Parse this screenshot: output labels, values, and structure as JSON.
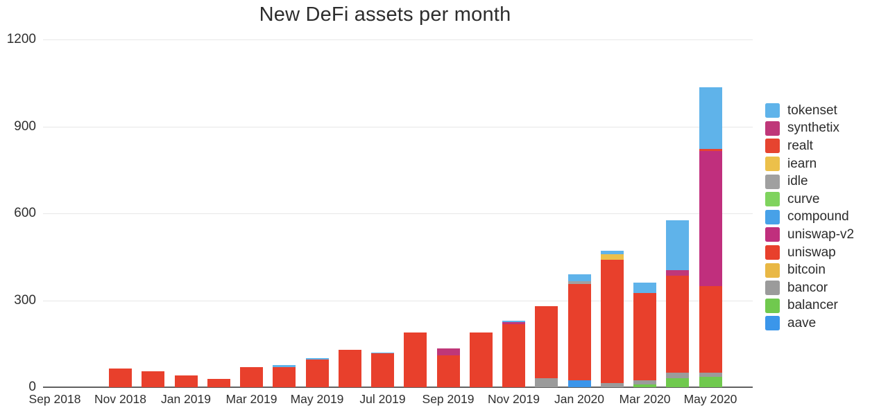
{
  "chart_data": {
    "type": "bar",
    "stacked": true,
    "title": "New DeFi assets per month",
    "categories": [
      "Sep 2018",
      "Oct 2018",
      "Nov 2018",
      "Dec 2018",
      "Jan 2019",
      "Feb 2019",
      "Mar 2019",
      "Apr 2019",
      "May 2019",
      "Jun 2019",
      "Jul 2019",
      "Aug 2019",
      "Sep 2019",
      "Oct 2019",
      "Nov 2019",
      "Dec 2019",
      "Jan 2020",
      "Feb 2020",
      "Mar 2020",
      "Apr 2020",
      "May 2020"
    ],
    "x_axis_tick_labels": [
      "Sep 2018",
      "Nov 2018",
      "Jan 2019",
      "Mar 2019",
      "May 2019",
      "Jul 2019",
      "Sep 2019",
      "Nov 2019",
      "Jan 2020",
      "Mar 2020",
      "May 2020"
    ],
    "y_axis": {
      "ticks": [
        0,
        300,
        600,
        900,
        1200
      ],
      "range": [
        0,
        1260
      ]
    },
    "grid": true,
    "legend_position": "right",
    "legend_order_top_to_bottom": [
      "tokenset",
      "synthetix",
      "realt",
      "iearn",
      "idle",
      "curve",
      "compound",
      "uniswap-v2",
      "uniswap",
      "bitcoin",
      "bancor",
      "balancer",
      "aave"
    ],
    "stack_order_bottom_to_top": [
      "aave",
      "balancer",
      "bancor",
      "bitcoin",
      "uniswap",
      "uniswap-v2",
      "compound",
      "curve",
      "idle",
      "iearn",
      "realt",
      "synthetix",
      "tokenset"
    ],
    "series": [
      {
        "name": "tokenset",
        "color": "#5fb3ea",
        "values": [
          0,
          0,
          0,
          0,
          0,
          0,
          0,
          6,
          6,
          0,
          4,
          0,
          0,
          0,
          5,
          0,
          25,
          10,
          35,
          170,
          212
        ]
      },
      {
        "name": "synthetix",
        "color": "#bf3779",
        "values": [
          0,
          0,
          0,
          0,
          0,
          0,
          0,
          0,
          0,
          0,
          0,
          0,
          25,
          0,
          7,
          0,
          0,
          0,
          0,
          20,
          0
        ]
      },
      {
        "name": "realt",
        "color": "#e64430",
        "values": [
          0,
          0,
          0,
          0,
          0,
          0,
          0,
          0,
          0,
          0,
          0,
          0,
          0,
          0,
          0,
          0,
          0,
          0,
          0,
          0,
          8
        ]
      },
      {
        "name": "iearn",
        "color": "#ecc04a",
        "values": [
          0,
          0,
          0,
          0,
          0,
          0,
          0,
          0,
          0,
          0,
          0,
          0,
          0,
          0,
          0,
          0,
          0,
          20,
          0,
          0,
          0
        ]
      },
      {
        "name": "idle",
        "color": "#a0a0a0",
        "values": [
          0,
          0,
          0,
          0,
          0,
          0,
          0,
          0,
          0,
          0,
          0,
          0,
          0,
          0,
          0,
          0,
          10,
          0,
          0,
          0,
          0
        ]
      },
      {
        "name": "curve",
        "color": "#7fd35e",
        "values": [
          0,
          0,
          0,
          0,
          0,
          0,
          0,
          0,
          0,
          0,
          0,
          0,
          0,
          0,
          0,
          0,
          0,
          0,
          0,
          0,
          0
        ]
      },
      {
        "name": "compound",
        "color": "#47a1e8",
        "values": [
          0,
          0,
          0,
          0,
          0,
          0,
          0,
          0,
          0,
          0,
          0,
          0,
          0,
          0,
          0,
          0,
          0,
          0,
          0,
          0,
          0
        ]
      },
      {
        "name": "uniswap-v2",
        "color": "#c02f7d",
        "values": [
          0,
          0,
          0,
          0,
          0,
          0,
          0,
          0,
          0,
          0,
          0,
          0,
          0,
          0,
          0,
          0,
          0,
          0,
          0,
          0,
          465
        ]
      },
      {
        "name": "uniswap",
        "color": "#e8402c",
        "values": [
          0,
          0,
          65,
          55,
          40,
          28,
          70,
          70,
          95,
          130,
          116,
          190,
          110,
          190,
          218,
          250,
          330,
          425,
          300,
          335,
          300
        ]
      },
      {
        "name": "bitcoin",
        "color": "#e9b845",
        "values": [
          0,
          0,
          0,
          0,
          0,
          0,
          0,
          0,
          0,
          0,
          0,
          0,
          0,
          0,
          0,
          0,
          0,
          0,
          0,
          0,
          0
        ]
      },
      {
        "name": "bancor",
        "color": "#9b9b9b",
        "values": [
          0,
          0,
          0,
          0,
          0,
          0,
          0,
          0,
          0,
          0,
          0,
          0,
          0,
          0,
          0,
          30,
          0,
          15,
          15,
          20,
          15
        ]
      },
      {
        "name": "balancer",
        "color": "#70c94e",
        "values": [
          0,
          0,
          0,
          0,
          0,
          0,
          0,
          0,
          0,
          0,
          0,
          0,
          0,
          0,
          0,
          0,
          0,
          0,
          10,
          30,
          35
        ]
      },
      {
        "name": "aave",
        "color": "#3b96ea",
        "values": [
          0,
          0,
          0,
          0,
          0,
          0,
          0,
          0,
          0,
          0,
          0,
          0,
          0,
          0,
          0,
          0,
          25,
          0,
          0,
          0,
          0
        ]
      }
    ]
  }
}
